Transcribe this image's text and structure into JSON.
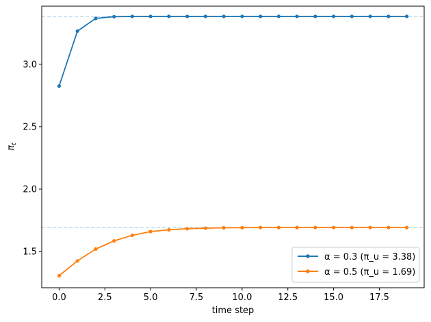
{
  "chart_data": {
    "type": "line",
    "title": "",
    "xlabel": "time step",
    "ylabel": "π_t",
    "xlim": [
      -0.95,
      19.95
    ],
    "ylim": [
      1.21,
      3.465
    ],
    "xticks": [
      0.0,
      2.5,
      5.0,
      7.5,
      10.0,
      12.5,
      15.0,
      17.5
    ],
    "xtick_labels": [
      "0.0",
      "2.5",
      "5.0",
      "7.5",
      "10.0",
      "12.5",
      "15.0",
      "17.5"
    ],
    "yticks": [
      1.5,
      2.0,
      2.5,
      3.0
    ],
    "ytick_labels": [
      "1.5",
      "2.0",
      "2.5",
      "3.0"
    ],
    "grid": false,
    "legend_position": "lower-right",
    "x": [
      0,
      1,
      2,
      3,
      4,
      5,
      6,
      7,
      8,
      9,
      10,
      11,
      12,
      13,
      14,
      15,
      16,
      17,
      18,
      19
    ],
    "series": [
      {
        "name": "α = 0.3  (π_u = 3.38)",
        "color": "#1f77b4",
        "values": [
          2.825,
          3.265,
          3.367,
          3.381,
          3.383,
          3.383,
          3.383,
          3.383,
          3.383,
          3.383,
          3.383,
          3.383,
          3.383,
          3.383,
          3.383,
          3.383,
          3.383,
          3.383,
          3.383,
          3.383
        ],
        "reference_line": 3.383
      },
      {
        "name": "α = 0.5  (π_u = 1.69)",
        "color": "#ff7f0e",
        "values": [
          1.306,
          1.425,
          1.52,
          1.585,
          1.63,
          1.66,
          1.674,
          1.683,
          1.687,
          1.69,
          1.691,
          1.692,
          1.692,
          1.692,
          1.692,
          1.692,
          1.692,
          1.692,
          1.692,
          1.692
        ],
        "reference_line": 1.692
      }
    ],
    "reference_line_color": "#9ecae1"
  }
}
